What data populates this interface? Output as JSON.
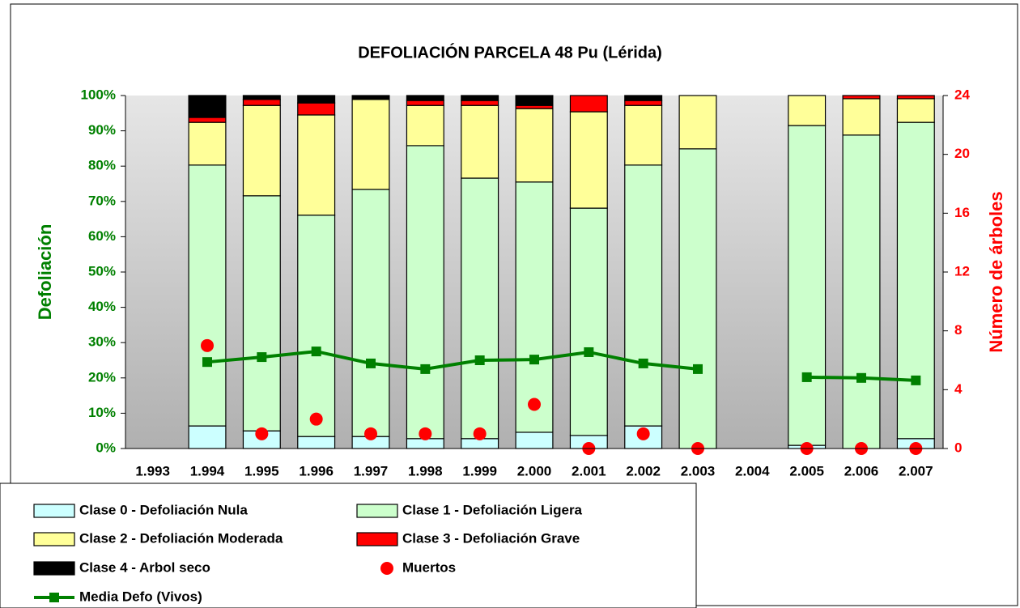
{
  "chart_data": {
    "type": "bar",
    "title": "DEFOLIACIÓN PARCELA 48 Pu (Lérida)",
    "y_label": "Defoliación",
    "y2_label": "Número de árboles",
    "categories": [
      "1.993",
      "1.994",
      "1.995",
      "1.996",
      "1.997",
      "1.998",
      "1.999",
      "2.000",
      "2.001",
      "2.002",
      "2.003",
      "2.004",
      "2.005",
      "2.006",
      "2.007"
    ],
    "ylim": [
      0,
      100
    ],
    "yticks": [
      {
        "value": 0,
        "label": "0%"
      },
      {
        "value": 10,
        "label": "10%"
      },
      {
        "value": 20,
        "label": "20%"
      },
      {
        "value": 30,
        "label": "30%"
      },
      {
        "value": 40,
        "label": "40%"
      },
      {
        "value": 50,
        "label": "50%"
      },
      {
        "value": 60,
        "label": "60%"
      },
      {
        "value": 70,
        "label": "70%"
      },
      {
        "value": 80,
        "label": "80%"
      },
      {
        "value": 90,
        "label": "90%"
      },
      {
        "value": 100,
        "label": "100%"
      }
    ],
    "y2lim": [
      0,
      24
    ],
    "y2ticks": [
      0,
      4,
      8,
      12,
      16,
      20,
      24
    ],
    "y_color": "#008000",
    "y2_color": "#ff0000",
    "stacked": true,
    "series": [
      {
        "name": "Clase 0 - Defoliación Nula",
        "type": "bar",
        "color": "#ccffff",
        "values": [
          null,
          6.4,
          5.0,
          3.4,
          3.4,
          2.8,
          2.8,
          4.6,
          3.7,
          6.4,
          0,
          null,
          0.9,
          0,
          2.8
        ]
      },
      {
        "name": "Clase 1 - Defoliación Ligera",
        "type": "bar",
        "color": "#ccffcc",
        "values": [
          null,
          73.9,
          66.6,
          62.7,
          70.0,
          83.0,
          73.8,
          70.9,
          64.4,
          73.9,
          84.9,
          null,
          90.6,
          88.8,
          89.6
        ]
      },
      {
        "name": "Clase 2 - Defoliación Moderada",
        "type": "bar",
        "color": "#ffff99",
        "values": [
          null,
          12.1,
          25.6,
          28.4,
          25.5,
          11.4,
          20.6,
          20.8,
          27.3,
          16.9,
          15.1,
          null,
          8.5,
          10.3,
          6.7
        ]
      },
      {
        "name": "Clase 3 - Defoliación Grave",
        "type": "bar",
        "color": "#ff0000",
        "values": [
          null,
          1.4,
          1.7,
          3.4,
          0,
          1.4,
          1.4,
          0.9,
          4.6,
          1.4,
          0,
          null,
          0,
          0.9,
          0.9
        ]
      },
      {
        "name": "Clase 4 - Arbol seco",
        "type": "bar",
        "color": "#000000",
        "values": [
          null,
          6.2,
          1.1,
          2.1,
          1.1,
          1.4,
          1.4,
          2.8,
          0,
          1.4,
          0,
          null,
          0,
          0,
          0
        ]
      },
      {
        "name": "Muertos",
        "type": "scatter",
        "axis": "y2",
        "color": "#ff0000",
        "values": [
          null,
          7,
          1,
          2,
          1,
          1,
          1,
          3,
          0,
          1,
          0,
          null,
          0,
          0,
          0
        ]
      },
      {
        "name": "Media Defo (Vivos)",
        "type": "line",
        "color": "#008000",
        "values": [
          null,
          24.5,
          25.9,
          27.5,
          24.1,
          22.5,
          25.0,
          25.2,
          27.3,
          24.1,
          22.5,
          null,
          20.2,
          20.0,
          19.3
        ]
      }
    ]
  }
}
